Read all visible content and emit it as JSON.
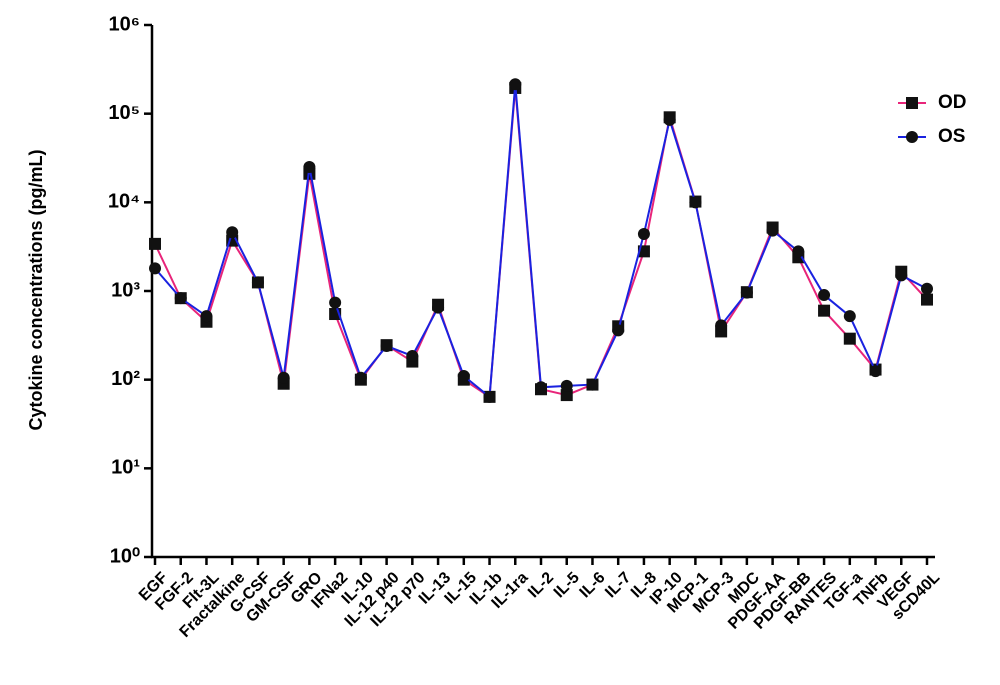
{
  "chart_data": {
    "type": "line",
    "y_label": "Cytokine concentrations (pg/mL)",
    "categories": [
      "EGF",
      "FGF-2",
      "Flt-3L",
      "Fractalkine",
      "G-CSF",
      "GM-CSF",
      "GRO",
      "IFNa2",
      "IL-10",
      "IL-12 p40",
      "IL-12 p70",
      "IL-13",
      "IL-15",
      "IL-1b",
      "IL-1ra",
      "IL-2",
      "IL-5",
      "IL-6",
      "IL-7",
      "IL-8",
      "IP-10",
      "MCP-1",
      "MCP-3",
      "MDC",
      "PDGF-AA",
      "PDGF-BB",
      "RANTES",
      "TGF-a",
      "TNFb",
      "VEGF",
      "sCD40L"
    ],
    "series": [
      {
        "name": "OD",
        "color": "#e8257a",
        "marker": "square",
        "values": [
          3400,
          830,
          450,
          3700,
          1250,
          90,
          21000,
          550,
          100,
          245,
          160,
          700,
          100,
          64,
          195000,
          78,
          67,
          88,
          400,
          2800,
          91000,
          10200,
          350,
          970,
          5200,
          2400,
          600,
          290,
          130,
          1650,
          800
        ]
      },
      {
        "name": "OS",
        "color": "#1a22e0",
        "marker": "circle",
        "values": [
          1800,
          830,
          520,
          4600,
          1250,
          105,
          25000,
          740,
          105,
          240,
          185,
          650,
          110,
          64,
          215000,
          82,
          85,
          88,
          360,
          4400,
          85000,
          10000,
          410,
          960,
          4800,
          2800,
          900,
          520,
          125,
          1500,
          1060
        ]
      }
    ],
    "log_scale": true,
    "ylim": [
      1,
      1000000
    ],
    "yticks": [
      {
        "value": 1,
        "label": "10⁰"
      },
      {
        "value": 10,
        "label": "10¹"
      },
      {
        "value": 100,
        "label": "10²"
      },
      {
        "value": 1000,
        "label": "10³"
      },
      {
        "value": 10000,
        "label": "10⁴"
      },
      {
        "value": 100000,
        "label": "10⁵"
      },
      {
        "value": 1000000,
        "label": "10⁶"
      }
    ],
    "legend": "top-right"
  }
}
